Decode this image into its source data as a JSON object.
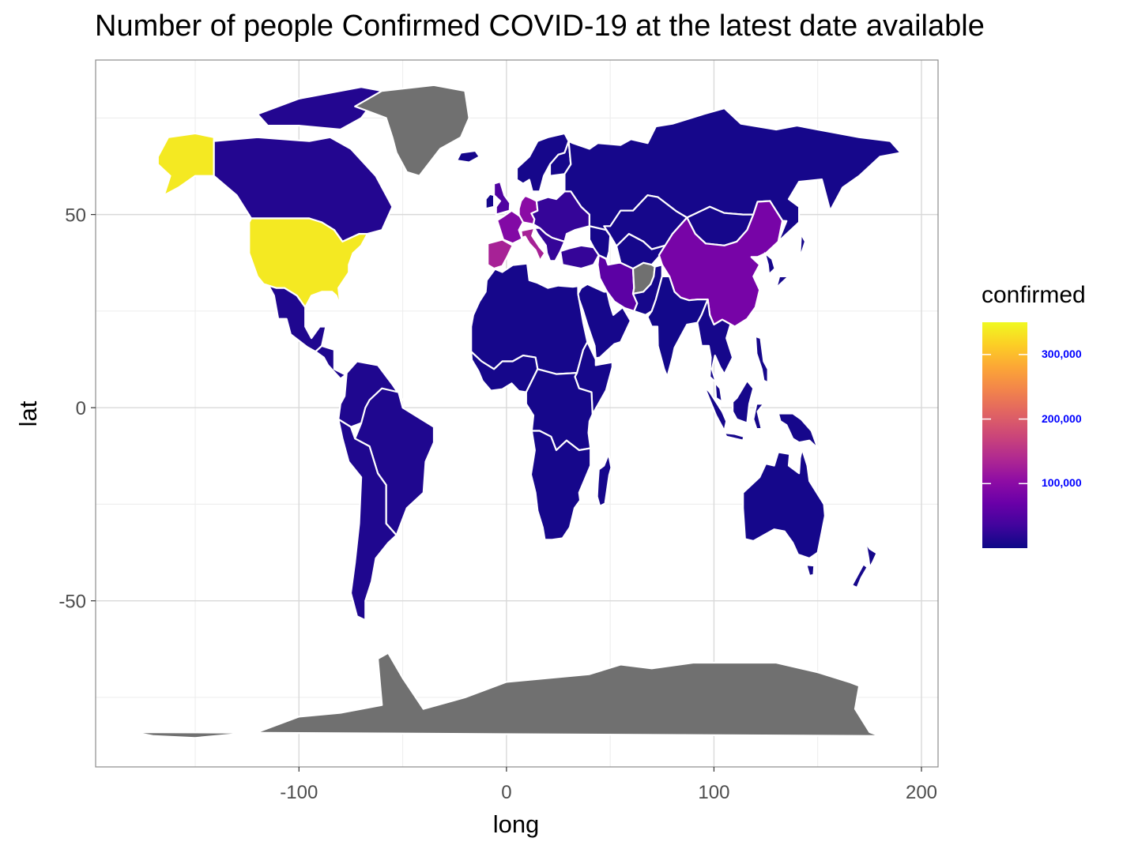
{
  "title": "Number of people Confirmed COVID-19 at the latest date available",
  "colors": {
    "background": "#ffffff",
    "panel_border": "#8c8c8c",
    "grid_major": "#d9d9d9",
    "grid_minor": "#ececec",
    "no_data": "#707070",
    "country_border": "#ffffff",
    "legend_label": "#0000ff",
    "scale": [
      "#0d0887",
      "#41049d",
      "#6a00a8",
      "#8f0da4",
      "#b12a90",
      "#cc4778",
      "#e16462",
      "#f2844b",
      "#fca636",
      "#fcce25",
      "#f0f921"
    ]
  },
  "chart_data": {
    "type": "map",
    "title": "Number of people Confirmed COVID-19 at the latest date available",
    "xlabel": "long",
    "ylabel": "lat",
    "xlim": [
      -198,
      208
    ],
    "ylim": [
      -93,
      90
    ],
    "x_ticks": [
      -100,
      0,
      100,
      200
    ],
    "x_tick_labels": [
      "-100",
      "0",
      "100",
      "200"
    ],
    "x_minor_ticks": [
      -150,
      -50,
      50,
      150
    ],
    "y_ticks": [
      -50,
      0,
      50
    ],
    "y_tick_labels": [
      "-50",
      "0",
      "50"
    ],
    "y_minor_ticks": [
      -75,
      -25,
      25,
      75
    ],
    "grid": true,
    "legend": {
      "title": "confirmed",
      "placement": "right",
      "range": [
        0,
        350000
      ],
      "breaks": [
        100000,
        200000,
        300000
      ],
      "break_labels": [
        "100,000",
        "200,000",
        "300,000"
      ]
    },
    "regions": [
      {
        "name": "USA",
        "value": 337000
      },
      {
        "name": "Alaska",
        "value": 337000
      },
      {
        "name": "Spain",
        "value": 130000
      },
      {
        "name": "Italy",
        "value": 129000
      },
      {
        "name": "Germany",
        "value": 100000
      },
      {
        "name": "France",
        "value": 93000
      },
      {
        "name": "China",
        "value": 82000
      },
      {
        "name": "Iran",
        "value": 58000
      },
      {
        "name": "UK",
        "value": 48000
      },
      {
        "name": "Turkey",
        "value": 27000
      },
      {
        "name": "Canada",
        "value": 15000
      },
      {
        "name": "Russia",
        "value": 6000
      },
      {
        "name": "Brazil",
        "value": 12000
      },
      {
        "name": "India",
        "value": 4000
      },
      {
        "name": "Australia",
        "value": 5700
      },
      {
        "name": "Greenland",
        "value": null
      },
      {
        "name": "Antarctica",
        "value": null
      }
    ]
  }
}
